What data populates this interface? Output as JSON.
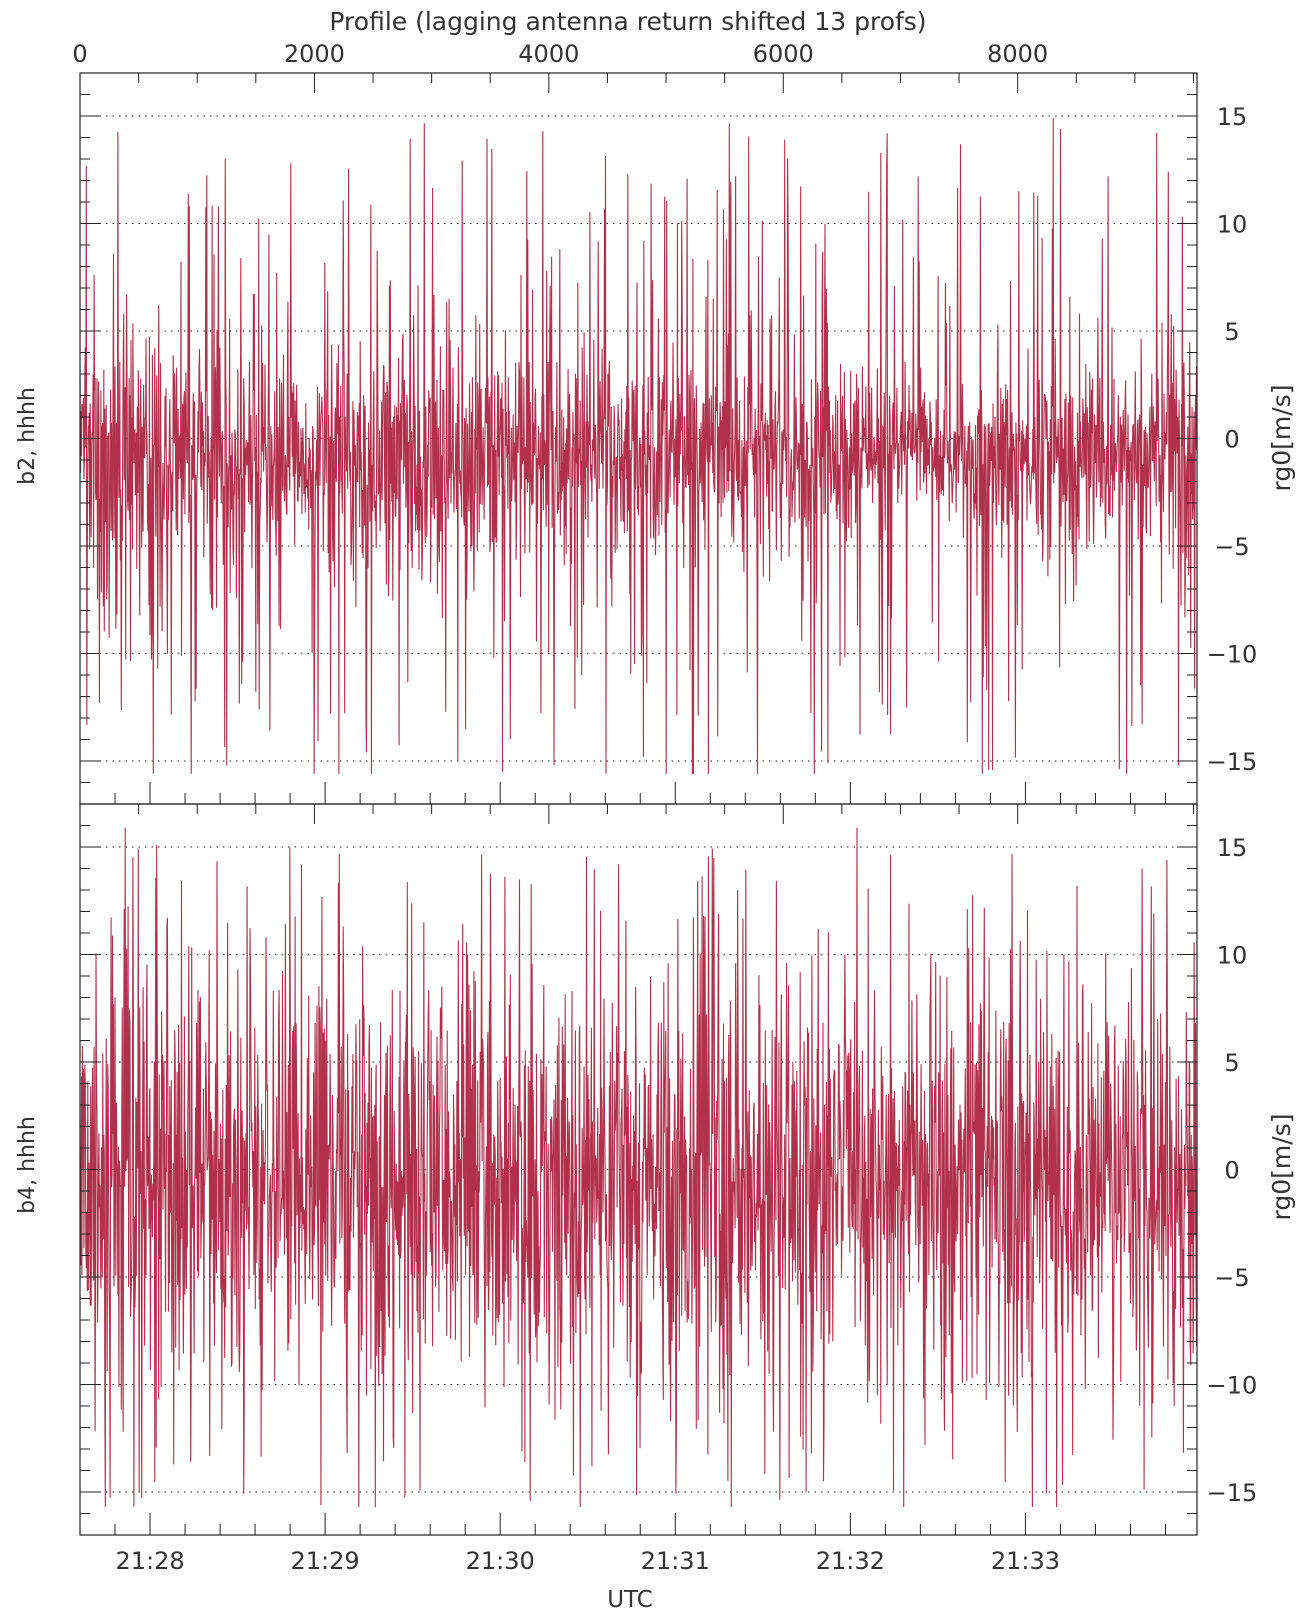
{
  "chart_data": {
    "type": "line",
    "top_axis": {
      "label": "Profile (lagging antenna return shifted 13 profs)",
      "range": [
        0,
        9530
      ],
      "ticks": [
        "0",
        "2000",
        "4000",
        "6000",
        "8000"
      ],
      "tick_values": [
        0,
        2000,
        4000,
        6000,
        8000
      ]
    },
    "bottom_axis": {
      "label": "UTC",
      "range_minutes": [
        1287.6,
        1293.98
      ],
      "ticks": [
        "21:28",
        "21:29",
        "21:30",
        "21:31",
        "21:32",
        "21:33"
      ],
      "tick_values_minutes": [
        1288,
        1289,
        1290,
        1291,
        1292,
        1293
      ]
    },
    "grid": true,
    "line_color": "#b2304c",
    "panels": [
      {
        "name": "b2, hhhh",
        "ylabel": "rg0[m/s]",
        "ylim": [
          -17,
          17
        ],
        "yticks": [
          "15",
          "10",
          "5",
          "0",
          "−5",
          "−10",
          "−15"
        ],
        "ytick_values": [
          15,
          10,
          5,
          0,
          -5,
          -10,
          -15
        ],
        "gridlines": [
          15,
          10,
          5,
          0,
          -5,
          -10,
          -15
        ],
        "envelope": {
          "profiles": [
            0,
            500,
            1000,
            1500,
            2000,
            2500,
            3000,
            3500,
            4000,
            4500,
            5000,
            5500,
            6000,
            6500,
            7000,
            7500,
            8000,
            8500,
            9000,
            9530
          ],
          "upper": [
            5,
            5,
            4,
            3,
            4,
            5,
            4,
            4,
            3,
            3,
            3,
            3,
            3,
            3,
            2,
            2,
            2,
            3,
            3,
            3
          ],
          "lower": [
            -5,
            -5,
            -5,
            -4,
            -4,
            -5,
            -5,
            -5,
            -5,
            -4,
            -4,
            -4,
            -4,
            -4,
            -3,
            -3,
            -4,
            -5,
            -5,
            -5
          ]
        },
        "mean": -0.8,
        "peak_max": 15.9,
        "peak_min": -15.6
      },
      {
        "name": "b4, hhhh",
        "ylabel": "rg0[m/s]",
        "ylim": [
          -17,
          17
        ],
        "yticks": [
          "15",
          "10",
          "5",
          "0",
          "−5",
          "−10",
          "−15"
        ],
        "ytick_values": [
          15,
          10,
          5,
          0,
          -5,
          -10,
          -15
        ],
        "gridlines": [
          15,
          10,
          5,
          0,
          -5,
          -10,
          -15
        ],
        "envelope": {
          "profiles": [
            0,
            500,
            1000,
            1500,
            2000,
            2500,
            3000,
            3500,
            4000,
            4500,
            5000,
            5500,
            6000,
            6500,
            7000,
            7500,
            8000,
            8500,
            9000,
            9530
          ],
          "upper": [
            7,
            7,
            7,
            6,
            6,
            7,
            8,
            7,
            7,
            6,
            7,
            8,
            7,
            7,
            6,
            7,
            7,
            6,
            6,
            8
          ],
          "lower": [
            -7,
            -7,
            -7,
            -6,
            -6,
            -7,
            -8,
            -7,
            -7,
            -6,
            -7,
            -8,
            -7,
            -7,
            -6,
            -7,
            -7,
            -6,
            -6,
            -7
          ]
        },
        "mean": -0.6,
        "peak_max": 15.9,
        "peak_min": -15.7
      }
    ]
  }
}
